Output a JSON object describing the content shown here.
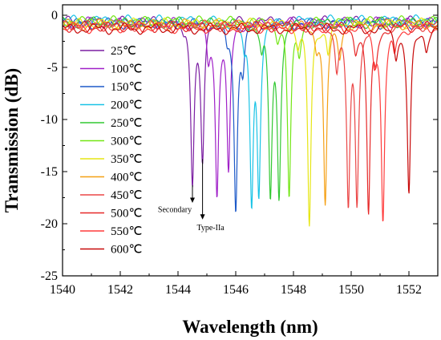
{
  "chart_data": {
    "type": "line",
    "xlabel": "Wavelength (nm)",
    "ylabel": "Transmission (dB)",
    "xlim": [
      1540,
      1553
    ],
    "ylim": [
      -25,
      1
    ],
    "xticks": [
      1540,
      1542,
      1544,
      1546,
      1548,
      1550,
      1552
    ],
    "yticks": [
      0,
      -5,
      -10,
      -15,
      -20,
      -25
    ],
    "legend_position": "left",
    "annotations": [
      {
        "text": "Secondary",
        "x": 1544.5
      },
      {
        "text": "Type-IIa",
        "x": 1544.85
      }
    ],
    "series": [
      {
        "name": "25℃",
        "color": "#7B1FA2",
        "baseline": -0.6,
        "dips": [
          [
            1544.2,
            -1.5
          ],
          [
            1544.5,
            -15.5
          ],
          [
            1544.85,
            -13.5
          ]
        ]
      },
      {
        "name": "100℃",
        "color": "#A020C8",
        "baseline": -0.7,
        "dips": [
          [
            1545.05,
            -4.0
          ],
          [
            1545.35,
            -16.8
          ],
          [
            1545.75,
            -15.0
          ]
        ]
      },
      {
        "name": "150℃",
        "color": "#1E5AC8",
        "baseline": -0.8,
        "dips": [
          [
            1545.7,
            -2.5
          ],
          [
            1546.0,
            -18.5
          ],
          [
            1546.25,
            -4.5
          ]
        ]
      },
      {
        "name": "200℃",
        "color": "#19C3E6",
        "baseline": -0.5,
        "dips": [
          [
            1546.3,
            -3.0
          ],
          [
            1546.55,
            -17.2
          ],
          [
            1546.8,
            -16.0
          ]
        ]
      },
      {
        "name": "250℃",
        "color": "#32C832",
        "baseline": -0.7,
        "dips": [
          [
            1546.9,
            -3.0
          ],
          [
            1547.2,
            -16.8
          ],
          [
            1547.5,
            -16.5
          ]
        ]
      },
      {
        "name": "300℃",
        "color": "#73E614",
        "baseline": -0.6,
        "dips": [
          [
            1547.45,
            -2.0
          ],
          [
            1547.85,
            -17.5
          ],
          [
            1548.2,
            -3.0
          ]
        ]
      },
      {
        "name": "350℃",
        "color": "#E6E614",
        "baseline": -0.8,
        "dips": [
          [
            1548.15,
            -2.5
          ],
          [
            1548.55,
            -20.3
          ],
          [
            1549.2,
            -3.5
          ]
        ]
      },
      {
        "name": "400℃",
        "color": "#F5A014",
        "baseline": -0.9,
        "dips": [
          [
            1548.8,
            -2.5
          ],
          [
            1549.1,
            -18.5
          ],
          [
            1549.6,
            -3.5
          ]
        ]
      },
      {
        "name": "450℃",
        "color": "#EB4646",
        "baseline": -1.0,
        "dips": [
          [
            1549.5,
            -4.5
          ],
          [
            1549.9,
            -17.8
          ],
          [
            1550.2,
            -17.5
          ]
        ]
      },
      {
        "name": "500℃",
        "color": "#E62828",
        "baseline": -1.1,
        "dips": [
          [
            1550.15,
            -3.0
          ],
          [
            1550.6,
            -19.0
          ],
          [
            1550.85,
            -4.0
          ]
        ]
      },
      {
        "name": "550℃",
        "color": "#FF3C3C",
        "baseline": -1.2,
        "dips": [
          [
            1550.8,
            -4.0
          ],
          [
            1551.1,
            -19.8
          ],
          [
            1551.5,
            -3.5
          ]
        ]
      },
      {
        "name": "600℃",
        "color": "#C80A0A",
        "baseline": -1.3,
        "dips": [
          [
            1551.55,
            -3.5
          ],
          [
            1552.0,
            -17.2
          ],
          [
            1552.6,
            -3.0
          ]
        ]
      }
    ]
  }
}
